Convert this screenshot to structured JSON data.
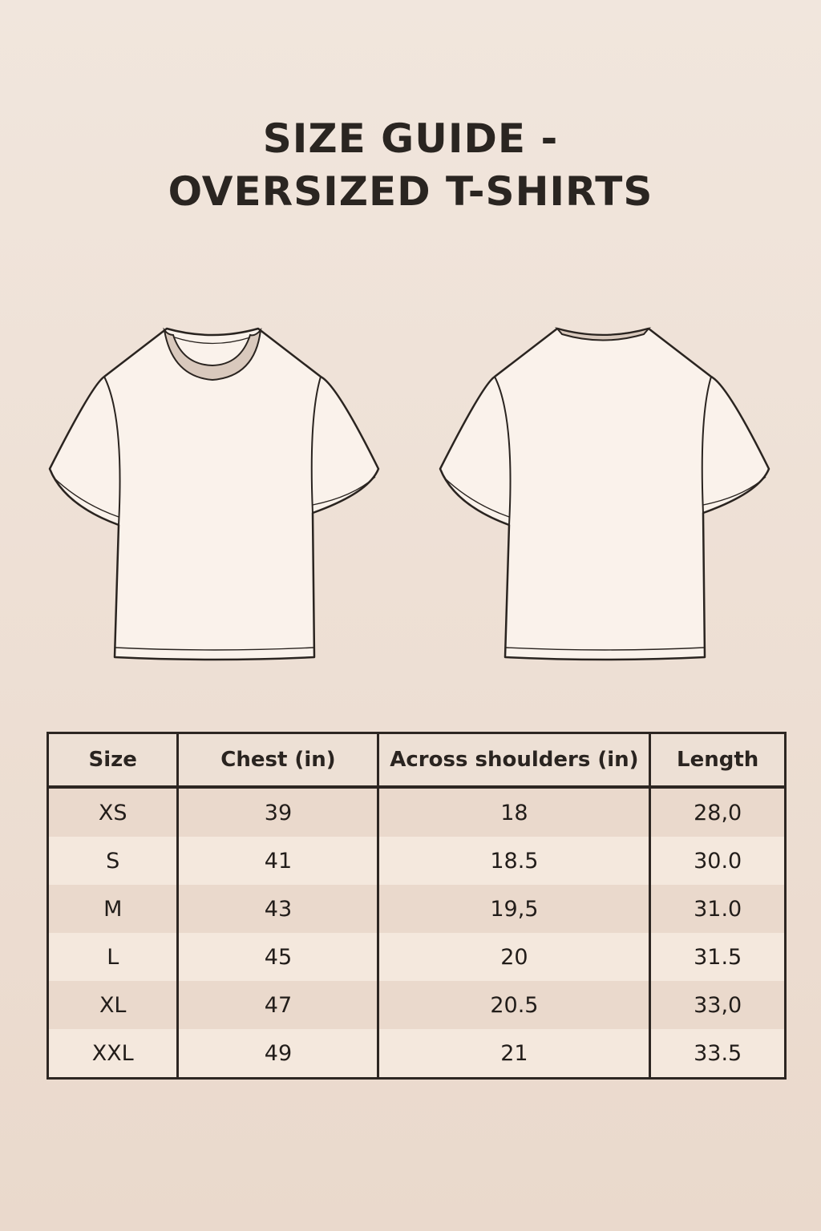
{
  "title": {
    "line1": "SIZE GUIDE -",
    "line2": "OVERSIZED T-SHIRTS"
  },
  "illustrations": {
    "front": "t-shirt-front",
    "back": "t-shirt-back",
    "fill": "#faf2eb",
    "collar": "#d9c9bd",
    "stroke": "#2a2420"
  },
  "table": {
    "headers": [
      "Size",
      "Chest (in)",
      "Across shoulders (in)",
      "Length"
    ],
    "rows": [
      [
        "XS",
        "39",
        "18",
        "28,0"
      ],
      [
        "S",
        "41",
        "18.5",
        "30.0"
      ],
      [
        "M",
        "43",
        "19,5",
        "31.0"
      ],
      [
        "L",
        "45",
        "20",
        "31.5"
      ],
      [
        "XL",
        "47",
        "20.5",
        "33,0"
      ],
      [
        "XXL",
        "49",
        "21",
        "33.5"
      ]
    ]
  }
}
